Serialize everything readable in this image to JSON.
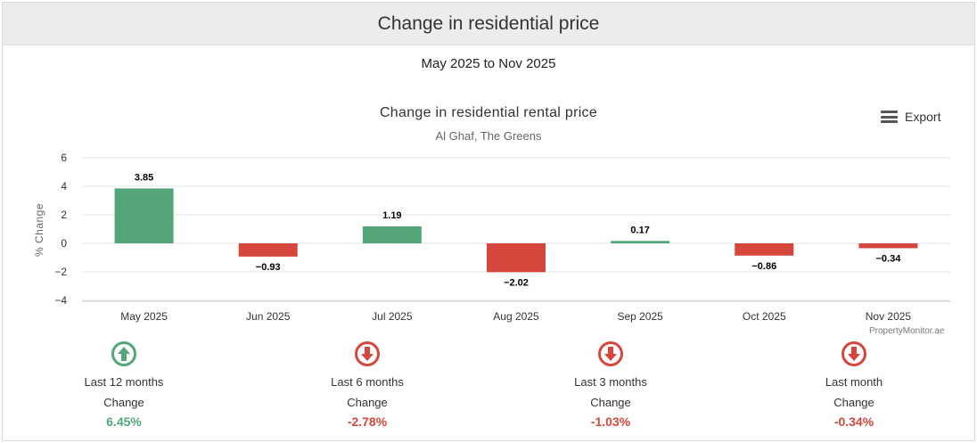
{
  "header": {
    "title": "Change in residential price"
  },
  "period": "May 2025 to Nov 2025",
  "export_label": "Export",
  "watermark": "PropertyMonitor.ae",
  "colors": {
    "positive": "#54a57a",
    "negative": "#d5463d",
    "grid": "#e6e6e6"
  },
  "chart_data": {
    "type": "bar",
    "title": "Change in residential rental price",
    "subtitle": "Al Ghaf, The Greens",
    "ylabel": "% Change",
    "xlabel": "",
    "ylim": [
      -4,
      6
    ],
    "yticks": [
      "6",
      "4",
      "2",
      "0",
      "−2",
      "−4"
    ],
    "ytick_values": [
      6,
      4,
      2,
      0,
      -2,
      -4
    ],
    "categories": [
      "May 2025",
      "Jun 2025",
      "Jul 2025",
      "Aug 2025",
      "Sep 2025",
      "Oct 2025",
      "Nov 2025"
    ],
    "values": [
      3.85,
      -0.93,
      1.19,
      -2.02,
      0.17,
      -0.86,
      -0.34
    ],
    "data_labels": [
      "3.85",
      "−0.93",
      "1.19",
      "−2.02",
      "0.17",
      "−0.86",
      "−0.34"
    ],
    "grid": true,
    "legend": "none"
  },
  "stats": [
    {
      "period": "Last 12 months",
      "label": "Change",
      "value": "6.45%",
      "direction": "up",
      "icon": "arrow-up-circle-icon"
    },
    {
      "period": "Last 6 months",
      "label": "Change",
      "value": "-2.78%",
      "direction": "down",
      "icon": "arrow-down-circle-icon"
    },
    {
      "period": "Last 3 months",
      "label": "Change",
      "value": "-1.03%",
      "direction": "down",
      "icon": "arrow-down-circle-icon"
    },
    {
      "period": "Last month",
      "label": "Change",
      "value": "-0.34%",
      "direction": "down",
      "icon": "arrow-down-circle-icon"
    }
  ]
}
